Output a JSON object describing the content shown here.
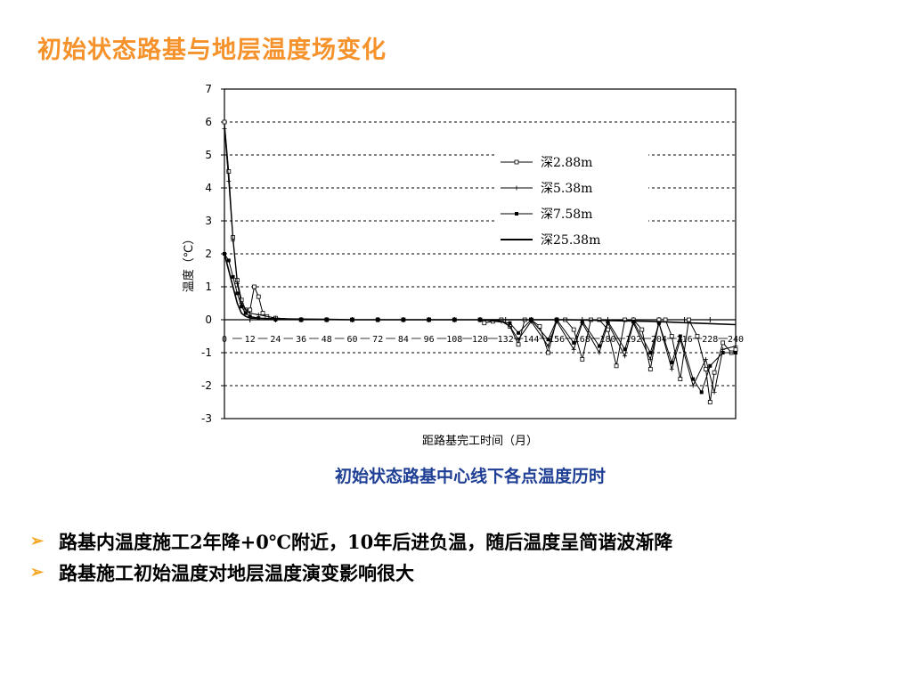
{
  "slide": {
    "title": "初始状态路基与地层温度场变化",
    "caption": "初始状态路基中心线下各点温度历时",
    "bullets": [
      "路基内温度施工2年降+0℃附近，10年后进负温，随后温度呈简谐波渐降",
      "路基施工初始温度对地层温度演变影响很大"
    ],
    "bullet_icon": "arrow-bullet-icon",
    "colors": {
      "title": "#f5922b",
      "caption": "#1f3f95",
      "bullet": "#f5a623"
    }
  },
  "chart_data": {
    "type": "line",
    "title": "",
    "xlabel": "距路基完工时间（月）",
    "ylabel": "温度（℃）",
    "xlim": [
      0,
      240
    ],
    "ylim": [
      -3,
      7
    ],
    "x_ticks": [
      0,
      12,
      24,
      36,
      48,
      60,
      72,
      84,
      96,
      108,
      120,
      132,
      144,
      156,
      168,
      180,
      192,
      204,
      216,
      228,
      240
    ],
    "y_ticks": [
      7,
      6,
      5,
      4,
      3,
      2,
      1,
      0,
      -1,
      -2,
      -3
    ],
    "grid": "horizontal dashed",
    "legend_position": "top-right",
    "series": [
      {
        "name": "深2.88m",
        "marker": "square-open",
        "x": [
          0,
          2,
          4,
          6,
          8,
          10,
          12,
          14,
          16,
          18,
          20,
          24,
          36,
          48,
          60,
          72,
          84,
          96,
          108,
          120,
          122,
          126,
          130,
          134,
          138,
          141,
          144,
          148,
          152,
          156,
          160,
          164,
          168,
          172,
          176,
          180,
          184,
          188,
          192,
          196,
          200,
          204,
          207,
          210,
          214,
          218,
          222,
          226,
          228,
          230,
          234,
          238,
          240
        ],
        "y": [
          6.0,
          4.5,
          2.5,
          1.2,
          0.6,
          0.3,
          0.3,
          1.0,
          0.7,
          0.2,
          0.1,
          0.05,
          0.0,
          0.0,
          0.0,
          0.0,
          0.0,
          0.0,
          0.0,
          0.0,
          -0.1,
          -0.05,
          0.0,
          -0.2,
          -0.75,
          0.0,
          0.0,
          -0.2,
          -1.0,
          0.0,
          0.0,
          -0.3,
          -1.2,
          0.0,
          0.0,
          -0.3,
          -1.4,
          0.0,
          0.0,
          -0.3,
          -1.5,
          0.0,
          0.0,
          -0.5,
          -1.8,
          0.0,
          -0.5,
          -1.5,
          -2.5,
          -1.6,
          -0.7,
          -1.0,
          -0.9
        ]
      },
      {
        "name": "深5.38m",
        "marker": "cross",
        "x": [
          0,
          2,
          4,
          6,
          8,
          10,
          12,
          16,
          24,
          36,
          48,
          60,
          72,
          84,
          96,
          108,
          120,
          130,
          134,
          138,
          144,
          152,
          156,
          164,
          168,
          176,
          180,
          188,
          192,
          200,
          204,
          210,
          214,
          220,
          226,
          230,
          234,
          240
        ],
        "y": [
          5.8,
          4.2,
          2.4,
          1.1,
          0.5,
          0.3,
          0.2,
          0.15,
          0.05,
          0.0,
          0.0,
          0.0,
          0.0,
          0.0,
          0.0,
          0.0,
          0.0,
          -0.05,
          -0.2,
          -0.6,
          -0.05,
          -0.8,
          -0.05,
          -0.9,
          -0.1,
          -1.0,
          -0.1,
          -1.1,
          -0.1,
          -1.2,
          -0.1,
          -1.5,
          -0.6,
          -2.0,
          -1.2,
          -2.2,
          -0.9,
          -0.8
        ]
      },
      {
        "name": "深7.58m",
        "marker": "square-filled",
        "x": [
          0,
          2,
          4,
          6,
          8,
          10,
          12,
          16,
          24,
          36,
          48,
          60,
          72,
          84,
          96,
          108,
          120,
          134,
          138,
          144,
          152,
          156,
          164,
          168,
          176,
          180,
          188,
          192,
          200,
          204,
          210,
          214,
          220,
          224,
          228,
          234,
          240
        ],
        "y": [
          2.0,
          1.8,
          1.3,
          0.8,
          0.4,
          0.2,
          0.1,
          0.05,
          0.0,
          0.0,
          0.0,
          0.0,
          0.0,
          0.0,
          0.0,
          0.0,
          0.0,
          -0.1,
          -0.4,
          0.0,
          -0.6,
          0.0,
          -0.7,
          -0.05,
          -0.8,
          -0.05,
          -0.9,
          -0.05,
          -1.0,
          -0.1,
          -1.3,
          -0.5,
          -1.8,
          -2.2,
          -1.4,
          -1.0,
          -1.0
        ]
      },
      {
        "name": "深25.38m",
        "marker": "none",
        "x": [
          0,
          2,
          4,
          6,
          8,
          10,
          12,
          24,
          36,
          48,
          60,
          72,
          84,
          96,
          108,
          120,
          160,
          200,
          220,
          240
        ],
        "y": [
          2.0,
          1.5,
          1.0,
          0.5,
          0.2,
          0.1,
          0.05,
          0.03,
          0.02,
          0.01,
          0.0,
          0.0,
          0.0,
          0.0,
          0.0,
          0.0,
          0.0,
          -0.05,
          -0.1,
          -0.15
        ]
      }
    ]
  }
}
